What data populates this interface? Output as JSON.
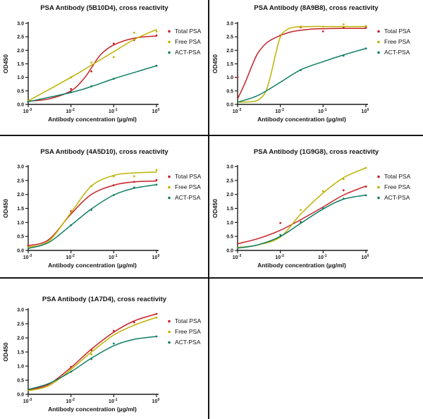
{
  "figure": {
    "description": "PSA antibody cross reactivity ELISA figure, 5 panels"
  },
  "colors": {
    "total_psa": "#c62127",
    "free_psa": "#bdb200",
    "act_psa": "#0e7d64",
    "axis": "#1a1a1a",
    "divider": "#151515"
  },
  "axes_shared": {
    "xlabel": "Antibody concentration (µg/ml)",
    "ylabel": "OD450",
    "xscale": "log",
    "xlim": [
      0.001,
      1
    ],
    "ylim": [
      0.0,
      3.0
    ],
    "x_ticks": [
      {
        "base": "10",
        "exp": "-3"
      },
      {
        "base": "10",
        "exp": "-2"
      },
      {
        "base": "10",
        "exp": "-1"
      },
      {
        "base": "10",
        "exp": "0"
      }
    ],
    "y_ticks": [
      "0.0",
      "0.5",
      "1.0",
      "1.5",
      "2.0",
      "2.5",
      "3.0"
    ],
    "legend": [
      "Total PSA",
      "Free PSA",
      "ACT-PSA"
    ],
    "legend_position": "right",
    "grid": false
  },
  "chart_data": [
    {
      "type": "line",
      "title": "PSA Antibody (5B10D4), cross reactivity",
      "xlabel": "Antibody concentration (µg/ml)",
      "ylabel": "OD450",
      "series": [
        {
          "name": "Total PSA",
          "color_key": "total_psa",
          "points": [
            [
              0.001,
              0.12
            ],
            [
              0.01,
              0.57
            ],
            [
              0.03,
              1.22
            ],
            [
              0.1,
              2.25
            ],
            [
              0.3,
              2.38
            ],
            [
              1,
              2.55
            ]
          ],
          "curve": [
            [
              0.001,
              0.12
            ],
            [
              0.003,
              0.2
            ],
            [
              0.01,
              0.5
            ],
            [
              0.02,
              0.95
            ],
            [
              0.03,
              1.35
            ],
            [
              0.05,
              1.85
            ],
            [
              0.1,
              2.2
            ],
            [
              0.3,
              2.45
            ],
            [
              1,
              2.53
            ]
          ]
        },
        {
          "name": "Free PSA",
          "color_key": "free_psa",
          "points": [
            [
              0.001,
              0.13
            ],
            [
              0.01,
              1.0
            ],
            [
              0.03,
              1.55
            ],
            [
              0.1,
              1.75
            ],
            [
              0.3,
              2.65
            ],
            [
              1,
              2.7
            ]
          ],
          "curve": [
            [
              0.001,
              0.13
            ],
            [
              0.01,
              1.0
            ],
            [
              0.03,
              1.45
            ],
            [
              0.1,
              1.95
            ],
            [
              0.3,
              2.4
            ],
            [
              1,
              2.77
            ]
          ]
        },
        {
          "name": "ACT-PSA",
          "color_key": "act_psa",
          "points": [
            [
              0.001,
              0.1
            ],
            [
              0.01,
              0.45
            ],
            [
              0.03,
              0.67
            ],
            [
              0.1,
              0.95
            ],
            [
              1,
              1.43
            ]
          ],
          "curve": [
            [
              0.001,
              0.1
            ],
            [
              0.01,
              0.44
            ],
            [
              0.03,
              0.66
            ],
            [
              0.1,
              0.95
            ],
            [
              0.3,
              1.18
            ],
            [
              1,
              1.43
            ]
          ]
        }
      ]
    },
    {
      "type": "line",
      "title": "PSA Antibody (8A9B8), cross reactivity",
      "xlabel": "Antibody concentration (µg/ml)",
      "ylabel": "OD450",
      "series": [
        {
          "name": "Total PSA",
          "color_key": "total_psa",
          "points": [
            [
              0.001,
              1.0
            ],
            [
              0.01,
              2.55
            ],
            [
              0.03,
              2.85
            ],
            [
              0.1,
              2.7
            ],
            [
              0.3,
              2.85
            ],
            [
              1,
              2.85
            ]
          ],
          "curve": [
            [
              0.001,
              0.2
            ],
            [
              0.0015,
              0.8
            ],
            [
              0.0022,
              1.45
            ],
            [
              0.003,
              1.9
            ],
            [
              0.005,
              2.3
            ],
            [
              0.01,
              2.55
            ],
            [
              0.02,
              2.7
            ],
            [
              0.05,
              2.78
            ],
            [
              0.1,
              2.8
            ],
            [
              0.3,
              2.81
            ],
            [
              1,
              2.81
            ]
          ]
        },
        {
          "name": "Free PSA",
          "color_key": "free_psa",
          "points": [
            [
              0.03,
              2.88
            ],
            [
              0.1,
              2.87
            ],
            [
              0.3,
              2.96
            ],
            [
              1,
              2.9
            ]
          ],
          "curve": [
            [
              0.001,
              0.08
            ],
            [
              0.002,
              0.1
            ],
            [
              0.003,
              0.16
            ],
            [
              0.0045,
              0.45
            ],
            [
              0.006,
              1.1
            ],
            [
              0.008,
              1.95
            ],
            [
              0.01,
              2.5
            ],
            [
              0.013,
              2.72
            ],
            [
              0.02,
              2.85
            ],
            [
              0.05,
              2.88
            ],
            [
              0.1,
              2.88
            ],
            [
              0.3,
              2.88
            ],
            [
              1,
              2.88
            ]
          ]
        },
        {
          "name": "ACT-PSA",
          "color_key": "act_psa",
          "points": [
            [
              0.03,
              1.27
            ],
            [
              0.3,
              1.8
            ],
            [
              1,
              2.07
            ]
          ],
          "curve": [
            [
              0.001,
              0.08
            ],
            [
              0.003,
              0.33
            ],
            [
              0.01,
              0.82
            ],
            [
              0.03,
              1.28
            ],
            [
              0.1,
              1.58
            ],
            [
              0.3,
              1.83
            ],
            [
              1,
              2.07
            ]
          ]
        }
      ]
    },
    {
      "type": "line",
      "title": "PSA Antibody (4A5D10), cross reactivity",
      "xlabel": "Antibody concentration (µg/ml)",
      "ylabel": "OD450",
      "series": [
        {
          "name": "Total PSA",
          "color_key": "total_psa",
          "points": [
            [
              0.001,
              0.17
            ],
            [
              0.01,
              1.4
            ],
            [
              0.1,
              2.33
            ],
            [
              0.3,
              2.45
            ],
            [
              1,
              2.52
            ]
          ],
          "curve": [
            [
              0.001,
              0.17
            ],
            [
              0.003,
              0.38
            ],
            [
              0.01,
              1.3
            ],
            [
              0.03,
              2.0
            ],
            [
              0.1,
              2.33
            ],
            [
              0.3,
              2.45
            ],
            [
              1,
              2.48
            ]
          ]
        },
        {
          "name": "Free PSA",
          "color_key": "free_psa",
          "points": [
            [
              0.03,
              2.3
            ],
            [
              0.1,
              2.65
            ],
            [
              0.3,
              2.65
            ],
            [
              1,
              2.87
            ]
          ],
          "curve": [
            [
              0.001,
              0.12
            ],
            [
              0.003,
              0.33
            ],
            [
              0.01,
              1.35
            ],
            [
              0.03,
              2.3
            ],
            [
              0.1,
              2.68
            ],
            [
              0.3,
              2.77
            ],
            [
              1,
              2.8
            ]
          ]
        },
        {
          "name": "ACT-PSA",
          "color_key": "act_psa",
          "points": [
            [
              0.01,
              0.9
            ],
            [
              0.03,
              1.45
            ],
            [
              0.1,
              1.98
            ],
            [
              0.3,
              2.25
            ],
            [
              1,
              2.35
            ]
          ],
          "curve": [
            [
              0.001,
              0.07
            ],
            [
              0.003,
              0.28
            ],
            [
              0.01,
              0.9
            ],
            [
              0.03,
              1.48
            ],
            [
              0.1,
              1.98
            ],
            [
              0.3,
              2.22
            ],
            [
              1,
              2.35
            ]
          ]
        }
      ]
    },
    {
      "type": "line",
      "title": "PSA Antibody (1G9G8), cross reactivity",
      "xlabel": "Antibody concentration (µg/ml)",
      "ylabel": "OD450",
      "series": [
        {
          "name": "Total PSA",
          "color_key": "total_psa",
          "points": [
            [
              0.01,
              0.98
            ],
            [
              0.03,
              1.02
            ],
            [
              0.3,
              2.15
            ],
            [
              1,
              2.28
            ]
          ],
          "curve": [
            [
              0.001,
              0.24
            ],
            [
              0.003,
              0.42
            ],
            [
              0.01,
              0.72
            ],
            [
              0.03,
              1.1
            ],
            [
              0.1,
              1.55
            ],
            [
              0.3,
              1.98
            ],
            [
              1,
              2.3
            ]
          ]
        },
        {
          "name": "Free PSA",
          "color_key": "free_psa",
          "points": [
            [
              0.03,
              1.45
            ],
            [
              0.1,
              2.12
            ],
            [
              0.3,
              2.55
            ],
            [
              1,
              2.95
            ]
          ],
          "curve": [
            [
              0.001,
              0.1
            ],
            [
              0.003,
              0.2
            ],
            [
              0.01,
              0.48
            ],
            [
              0.03,
              1.3
            ],
            [
              0.1,
              2.05
            ],
            [
              0.3,
              2.6
            ],
            [
              1,
              2.95
            ]
          ]
        },
        {
          "name": "ACT-PSA",
          "color_key": "act_psa",
          "points": [
            [
              0.01,
              0.55
            ],
            [
              0.03,
              1.0
            ],
            [
              0.1,
              1.5
            ],
            [
              0.3,
              1.85
            ],
            [
              1,
              1.97
            ]
          ],
          "curve": [
            [
              0.001,
              0.08
            ],
            [
              0.003,
              0.2
            ],
            [
              0.01,
              0.5
            ],
            [
              0.03,
              0.97
            ],
            [
              0.1,
              1.48
            ],
            [
              0.3,
              1.83
            ],
            [
              1,
              1.98
            ]
          ]
        }
      ]
    },
    {
      "type": "line",
      "title": "PSA Antibody (1A7D4), cross reactivity",
      "xlabel": "Antibody concentration (µg/ml)",
      "ylabel": "OD450",
      "series": [
        {
          "name": "Total PSA",
          "color_key": "total_psa",
          "points": [
            [
              0.01,
              0.97
            ],
            [
              0.03,
              1.57
            ],
            [
              0.1,
              2.25
            ],
            [
              0.3,
              2.55
            ],
            [
              1,
              2.85
            ]
          ],
          "curve": [
            [
              0.001,
              0.15
            ],
            [
              0.003,
              0.35
            ],
            [
              0.01,
              0.95
            ],
            [
              0.03,
              1.6
            ],
            [
              0.1,
              2.2
            ],
            [
              0.3,
              2.6
            ],
            [
              1,
              2.85
            ]
          ]
        },
        {
          "name": "Free PSA",
          "color_key": "free_psa",
          "points": [
            [
              0.01,
              0.9
            ],
            [
              0.03,
              1.42
            ],
            [
              1,
              2.72
            ]
          ],
          "curve": [
            [
              0.001,
              0.13
            ],
            [
              0.003,
              0.3
            ],
            [
              0.01,
              0.88
            ],
            [
              0.03,
              1.5
            ],
            [
              0.1,
              2.1
            ],
            [
              0.3,
              2.45
            ],
            [
              1,
              2.73
            ]
          ]
        },
        {
          "name": "ACT-PSA",
          "color_key": "act_psa",
          "points": [
            [
              0.01,
              0.8
            ],
            [
              0.03,
              1.25
            ],
            [
              0.1,
              1.8
            ],
            [
              1,
              2.05
            ]
          ],
          "curve": [
            [
              0.001,
              0.17
            ],
            [
              0.003,
              0.38
            ],
            [
              0.01,
              0.8
            ],
            [
              0.03,
              1.28
            ],
            [
              0.1,
              1.72
            ],
            [
              0.3,
              1.95
            ],
            [
              1,
              2.05
            ]
          ]
        }
      ]
    }
  ]
}
